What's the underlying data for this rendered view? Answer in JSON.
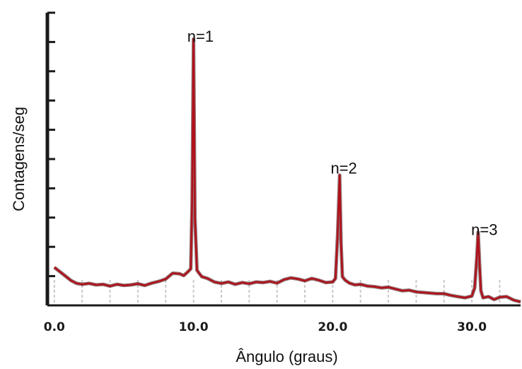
{
  "chart_data": {
    "type": "line",
    "title": "",
    "xlabel": "Ângulo (graus)",
    "ylabel": "Contagens/seg",
    "x_ticks": [
      {
        "value": 0,
        "label": "0.0"
      },
      {
        "value": 10,
        "label": "10.0"
      },
      {
        "value": 20,
        "label": "20.0"
      },
      {
        "value": 30,
        "label": "30.0"
      }
    ],
    "xlim": [
      -0.5,
      33.5
    ],
    "ylim": [
      0,
      10
    ],
    "y_tick_count": 10,
    "grid": "vertical dashed",
    "annotations": [
      {
        "text": "n=1",
        "x": 10.5,
        "y": 9.2
      },
      {
        "text": "n=2",
        "x": 20.8,
        "y": 4.7
      },
      {
        "text": "n=3",
        "x": 30.9,
        "y": 2.6
      }
    ],
    "series": [
      {
        "color": "#b0101a",
        "x": [
          0,
          0.4,
          0.8,
          1.2,
          1.6,
          2,
          2.5,
          3,
          3.5,
          4,
          4.5,
          5,
          5.5,
          6,
          6.5,
          7,
          7.5,
          8,
          8.5,
          9,
          9.3,
          9.6,
          9.8,
          9.9,
          10.0,
          10.1,
          10.25,
          10.4,
          10.6,
          11,
          11.5,
          12,
          12.5,
          13,
          13.5,
          14,
          14.5,
          15,
          15.5,
          16,
          16.5,
          17,
          17.5,
          18,
          18.5,
          19,
          19.5,
          20,
          20.2,
          20.35,
          20.5,
          20.6,
          20.7,
          20.9,
          21.2,
          21.6,
          22,
          22.5,
          23,
          23.5,
          24,
          24.5,
          25,
          25.5,
          26,
          26.5,
          27,
          27.5,
          28,
          28.5,
          29,
          29.5,
          30,
          30.2,
          30.35,
          30.45,
          30.55,
          30.65,
          30.8,
          31.2,
          31.6,
          32,
          32.5,
          33,
          33.5
        ],
        "y": [
          1.3,
          1.15,
          1.0,
          0.85,
          0.75,
          0.72,
          0.75,
          0.7,
          0.72,
          0.66,
          0.72,
          0.68,
          0.7,
          0.74,
          0.68,
          0.76,
          0.82,
          0.9,
          1.1,
          1.08,
          1.02,
          1.15,
          1.25,
          3.5,
          9.1,
          3.0,
          1.2,
          1.1,
          0.98,
          0.92,
          0.8,
          0.75,
          0.8,
          0.72,
          0.78,
          0.74,
          0.8,
          0.78,
          0.82,
          0.76,
          0.88,
          0.94,
          0.9,
          0.84,
          0.92,
          0.86,
          0.78,
          0.8,
          0.92,
          2.4,
          4.45,
          2.1,
          0.98,
          0.86,
          0.76,
          0.7,
          0.72,
          0.66,
          0.64,
          0.6,
          0.62,
          0.56,
          0.5,
          0.52,
          0.46,
          0.44,
          0.42,
          0.4,
          0.4,
          0.34,
          0.3,
          0.26,
          0.32,
          0.6,
          1.6,
          2.5,
          1.4,
          0.5,
          0.26,
          0.3,
          0.2,
          0.28,
          0.3,
          0.18,
          0.12
        ]
      }
    ]
  }
}
